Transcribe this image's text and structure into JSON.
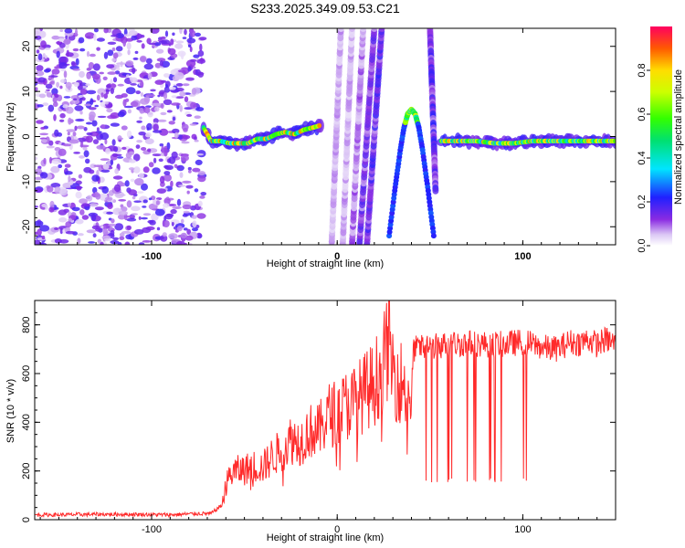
{
  "title": "S233.2025.349.09.53.C21",
  "chart_data": [
    {
      "type": "heatmap",
      "name": "spectrogram",
      "xlabel": "Height of straight line (km)",
      "ylabel": "Frequency (Hz)",
      "xlim": [
        -163,
        150
      ],
      "ylim": [
        -24,
        24
      ],
      "xticks": [
        -100,
        0,
        100
      ],
      "yticks": [
        -20,
        -10,
        0,
        10,
        20
      ],
      "colorbar": {
        "label": "Normalized spectral amplitude",
        "range": [
          0.0,
          1.0
        ],
        "ticks": [
          "0.0",
          "0.2",
          "0.4",
          "0.6",
          "0.8"
        ],
        "tick_values": [
          0.0,
          0.2,
          0.4,
          0.6,
          0.8
        ]
      },
      "features": [
        {
          "kind": "noise",
          "x_range": [
            -163,
            -72
          ],
          "amplitude": 0.1
        },
        {
          "kind": "tone",
          "x": [
            -72,
            -68,
            -63,
            -58,
            -53,
            -48,
            -43,
            -38,
            -33,
            -28,
            -23,
            -18,
            -13,
            -9
          ],
          "y": [
            2,
            -1,
            -1,
            -1.5,
            -1.5,
            -1.5,
            -0.5,
            -0.5,
            0.5,
            1,
            0.5,
            1.5,
            2,
            2.5
          ],
          "amplitude": 0.35
        },
        {
          "kind": "tone",
          "x": [
            56,
            65,
            75,
            85,
            95,
            105,
            115,
            125,
            135,
            145,
            150
          ],
          "y": [
            -1,
            -1,
            -1,
            -1.5,
            -1.5,
            -1,
            -1,
            -1,
            -1,
            -1,
            -1
          ],
          "amplitude": 0.3
        },
        {
          "kind": "arc",
          "x": [
            28,
            31,
            34,
            36,
            38,
            40,
            42,
            44,
            46,
            49,
            52
          ],
          "y": [
            -22,
            -12,
            -3,
            2,
            5,
            6,
            5,
            2,
            -3,
            -12,
            -22
          ],
          "amplitude": 0.2
        },
        {
          "kind": "streak",
          "x": [
            -3,
            2
          ],
          "y": [
            -24,
            24
          ],
          "amplitude": 0.05
        },
        {
          "kind": "streak",
          "x": [
            3,
            8
          ],
          "y": [
            -24,
            24
          ],
          "amplitude": 0.05
        },
        {
          "kind": "streak",
          "x": [
            8,
            14
          ],
          "y": [
            -24,
            24
          ],
          "amplitude": 0.07
        },
        {
          "kind": "streak",
          "x": [
            12,
            20
          ],
          "y": [
            -24,
            24
          ],
          "amplitude": 0.1
        },
        {
          "kind": "streak",
          "x": [
            16,
            24
          ],
          "y": [
            -24,
            24
          ],
          "amplitude": 0.12
        },
        {
          "kind": "streak",
          "x": [
            50,
            53
          ],
          "y": [
            24,
            -12
          ],
          "amplitude": 0.12
        }
      ]
    },
    {
      "type": "line",
      "name": "snr",
      "xlabel": "Height of straight line (km)",
      "ylabel": "SNR (10 * v/v)",
      "xlim": [
        -163,
        150
      ],
      "ylim": [
        0,
        900
      ],
      "xticks": [
        -100,
        0,
        100
      ],
      "yticks": [
        0,
        200,
        400,
        600,
        800
      ],
      "color": "#ff2a2a",
      "series": [
        {
          "name": "SNR",
          "x": [
            -163,
            -150,
            -130,
            -110,
            -90,
            -75,
            -68,
            -62,
            -60,
            -58,
            -55,
            -50,
            -45,
            -40,
            -35,
            -30,
            -25,
            -20,
            -15,
            -10,
            -5,
            0,
            5,
            10,
            15,
            20,
            25,
            28,
            30,
            35,
            40,
            41,
            45,
            50,
            55,
            60,
            70,
            80,
            90,
            100,
            110,
            115,
            120,
            125,
            130,
            135,
            140,
            145,
            150
          ],
          "y": [
            20,
            20,
            22,
            22,
            20,
            25,
            25,
            60,
            140,
            180,
            200,
            205,
            220,
            215,
            260,
            285,
            330,
            320,
            365,
            360,
            430,
            440,
            470,
            490,
            525,
            560,
            640,
            745,
            610,
            560,
            490,
            700,
            705,
            710,
            715,
            720,
            725,
            720,
            720,
            730,
            710,
            700,
            705,
            730,
            725,
            740,
            720,
            740,
            720
          ]
        }
      ],
      "dropouts": {
        "x_range": [
          45,
          103
        ],
        "low": 150
      }
    }
  ]
}
